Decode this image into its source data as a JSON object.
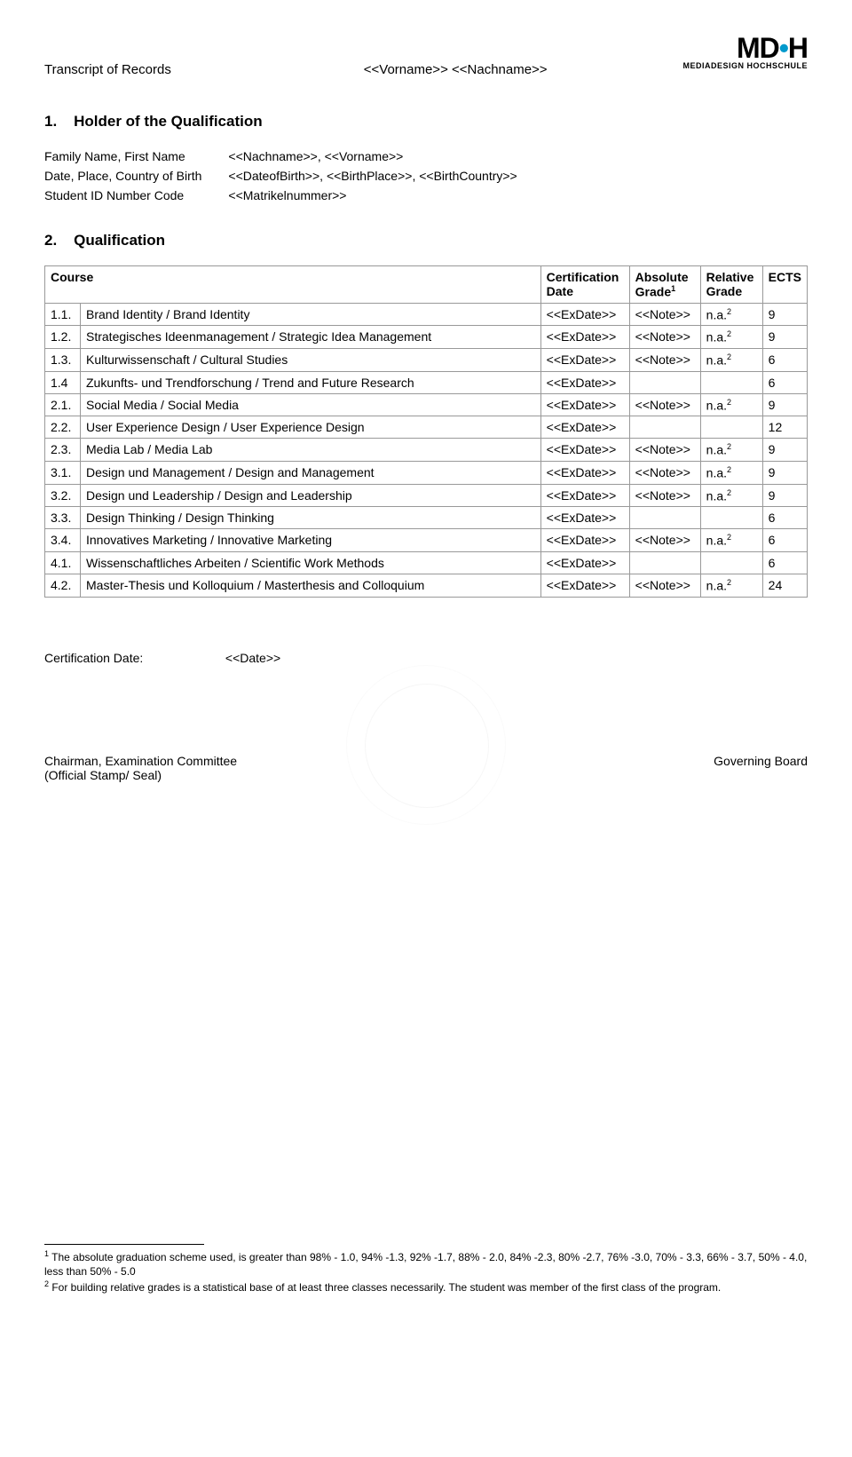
{
  "header": {
    "doc_title": "Transcript of Records",
    "name_placeholder": "<<Vorname>> <<Nachname>>",
    "logo_main": "MD",
    "logo_suffix": "H",
    "logo_sub": "MEDIADESIGN HOCHSCHULE"
  },
  "section1": {
    "number": "1.",
    "title": "Holder of the Qualification",
    "rows": [
      {
        "label": "Family Name, First Name",
        "value": "<<Nachname>>, <<Vorname>>"
      },
      {
        "label": "Date, Place, Country of Birth",
        "value": "<<DateofBirth>>, <<BirthPlace>>, <<BirthCountry>>"
      },
      {
        "label": "Student ID Number Code",
        "value": "<<Matrikelnummer>>"
      }
    ]
  },
  "section2": {
    "number": "2.",
    "title": "Qualification",
    "columns": {
      "course": "Course",
      "cert_date": "Certification Date",
      "abs_grade": "Absolute Grade",
      "abs_sup": "1",
      "rel_grade": "Relative Grade",
      "ects": "ECTS"
    },
    "rows": [
      {
        "num": "1.1.",
        "course": "Brand Identity / Brand Identity",
        "date": "<<ExDate>>",
        "abs": "<<Note>>",
        "rel": "n.a.",
        "rel_sup": "2",
        "ects": "9"
      },
      {
        "num": "1.2.",
        "course": "Strategisches Ideenmanagement / Strategic Idea Management",
        "date": "<<ExDate>>",
        "abs": "<<Note>>",
        "rel": "n.a.",
        "rel_sup": "2",
        "ects": "9"
      },
      {
        "num": "1.3.",
        "course": "Kulturwissenschaft / Cultural Studies",
        "date": "<<ExDate>>",
        "abs": "<<Note>>",
        "rel": "n.a.",
        "rel_sup": "2",
        "ects": "6"
      },
      {
        "num": "1.4",
        "course": "Zukunfts- und Trendforschung / Trend and Future Research",
        "date": "<<ExDate>>",
        "abs": "",
        "rel": "",
        "rel_sup": "",
        "ects": "6"
      },
      {
        "num": "2.1.",
        "course": "Social Media / Social Media",
        "date": "<<ExDate>>",
        "abs": "<<Note>>",
        "rel": "n.a.",
        "rel_sup": "2",
        "ects": "9"
      },
      {
        "num": "2.2.",
        "course": "User Experience Design / User Experience Design",
        "date": "<<ExDate>>",
        "abs": "",
        "rel": "",
        "rel_sup": "",
        "ects": "12"
      },
      {
        "num": "2.3.",
        "course": "Media Lab / Media Lab",
        "date": "<<ExDate>>",
        "abs": "<<Note>>",
        "rel": "n.a.",
        "rel_sup": "2",
        "ects": "9"
      },
      {
        "num": "3.1.",
        "course": "Design und Management / Design and Management",
        "date": "<<ExDate>>",
        "abs": "<<Note>>",
        "rel": "n.a.",
        "rel_sup": "2",
        "ects": "9"
      },
      {
        "num": "3.2.",
        "course": "Design und Leadership / Design and Leadership",
        "date": "<<ExDate>>",
        "abs": "<<Note>>",
        "rel": "n.a.",
        "rel_sup": "2",
        "ects": "9"
      },
      {
        "num": "3.3.",
        "course": "Design Thinking / Design Thinking",
        "date": "<<ExDate>>",
        "abs": "",
        "rel": "",
        "rel_sup": "",
        "ects": "6"
      },
      {
        "num": "3.4.",
        "course": "Innovatives Marketing / Innovative Marketing",
        "date": "<<ExDate>>",
        "abs": "<<Note>>",
        "rel": "n.a.",
        "rel_sup": "2",
        "ects": "6"
      },
      {
        "num": "4.1.",
        "course": "Wissenschaftliches Arbeiten / Scientific Work Methods",
        "date": "<<ExDate>>",
        "abs": "",
        "rel": "",
        "rel_sup": "",
        "ects": "6"
      },
      {
        "num": "4.2.",
        "course": "Master-Thesis und Kolloquium / Masterthesis and Colloquium",
        "date": "<<ExDate>>",
        "abs": "<<Note>>",
        "rel": "n.a.",
        "rel_sup": "2",
        "ects": "24"
      }
    ]
  },
  "cert_date": {
    "label": "Certification Date:",
    "value": "<<Date>>"
  },
  "signatures": {
    "left_line1": "Chairman, Examination Committee",
    "left_line2": "(Official Stamp/ Seal)",
    "right": "Governing Board"
  },
  "footnotes": {
    "fn1_sup": "1",
    "fn1": " The absolute graduation scheme used, is greater than 98% - 1.0, 94% -1.3, 92% -1.7, 88% - 2.0, 84% -2.3, 80% -2.7,  76% -3.0, 70% - 3.3, 66% - 3.7, 50% - 4.0, less than 50% - 5.0",
    "fn2_sup": "2",
    "fn2": " For building relative grades is a statistical base of at least three classes necessarily. The student was member of the first class of the program."
  }
}
